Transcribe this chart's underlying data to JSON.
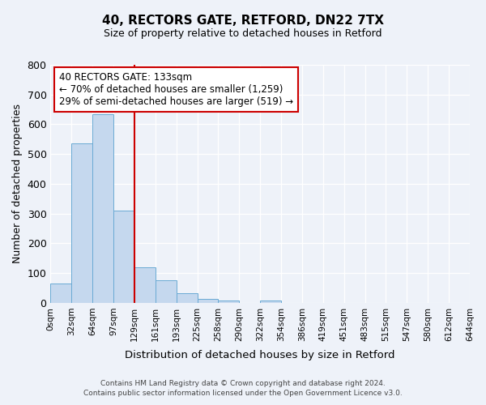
{
  "title": "40, RECTORS GATE, RETFORD, DN22 7TX",
  "subtitle": "Size of property relative to detached houses in Retford",
  "xlabel": "Distribution of detached houses by size in Retford",
  "ylabel": "Number of detached properties",
  "bar_color": "#c5d8ee",
  "bar_edge_color": "#6aaad4",
  "background_color": "#eef2f9",
  "grid_color": "#ffffff",
  "bin_labels": [
    "0sqm",
    "32sqm",
    "64sqm",
    "97sqm",
    "129sqm",
    "161sqm",
    "193sqm",
    "225sqm",
    "258sqm",
    "290sqm",
    "322sqm",
    "354sqm",
    "386sqm",
    "419sqm",
    "451sqm",
    "483sqm",
    "515sqm",
    "547sqm",
    "580sqm",
    "612sqm",
    "644sqm"
  ],
  "bar_heights": [
    65,
    535,
    635,
    310,
    120,
    75,
    33,
    13,
    8,
    0,
    8,
    0,
    0,
    0,
    0,
    0,
    0,
    0,
    0,
    0
  ],
  "ylim": [
    0,
    800
  ],
  "yticks": [
    0,
    100,
    200,
    300,
    400,
    500,
    600,
    700,
    800
  ],
  "property_line_x": 4,
  "property_line_color": "#cc0000",
  "annotation_text": "40 RECTORS GATE: 133sqm\n← 70% of detached houses are smaller (1,259)\n29% of semi-detached houses are larger (519) →",
  "annotation_box_color": "#ffffff",
  "annotation_box_edge_color": "#cc0000",
  "footer_line1": "Contains HM Land Registry data © Crown copyright and database right 2024.",
  "footer_line2": "Contains public sector information licensed under the Open Government Licence v3.0."
}
